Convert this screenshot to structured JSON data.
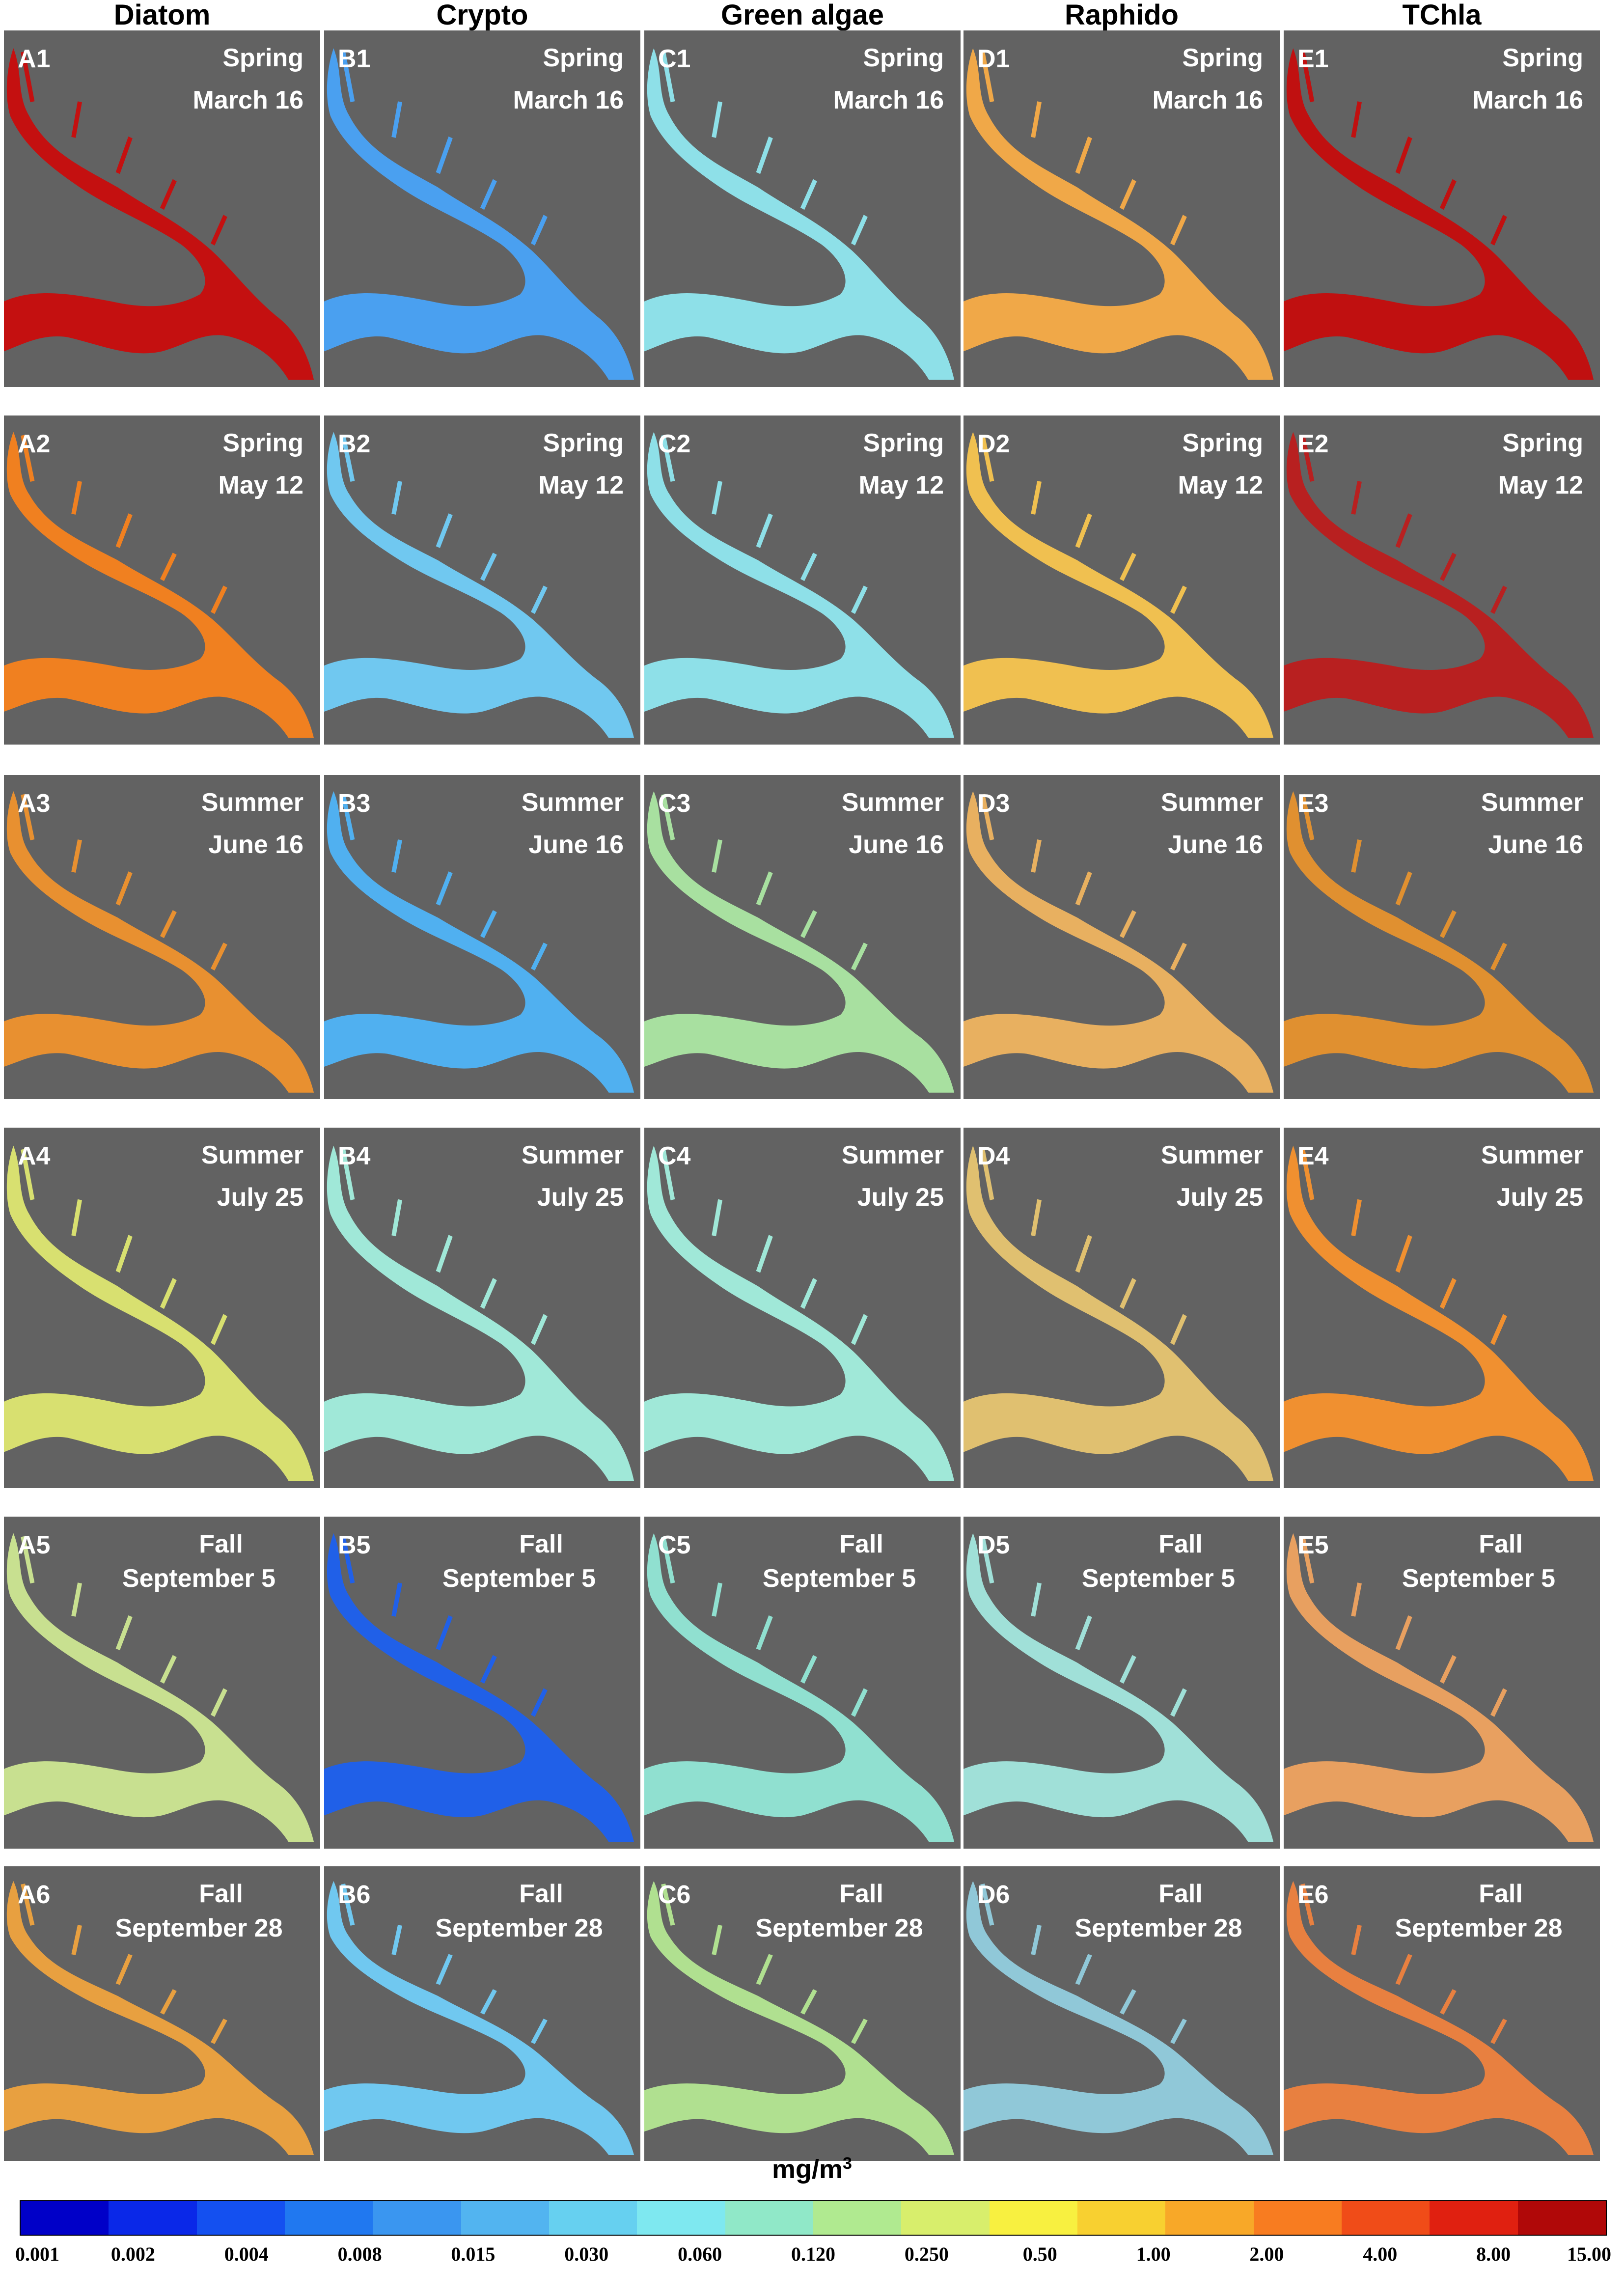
{
  "columns": [
    "Diatom",
    "Crypto",
    "Green algae",
    "Raphido",
    "TChla"
  ],
  "rows": [
    {
      "index": "1",
      "season": "Spring",
      "date": "March 16"
    },
    {
      "index": "2",
      "season": "Spring",
      "date": "May 12"
    },
    {
      "index": "3",
      "season": "Summer",
      "date": "June 16"
    },
    {
      "index": "4",
      "season": "Summer",
      "date": "July 25"
    },
    {
      "index": "5",
      "season": "Fall",
      "date": "September 5"
    },
    {
      "index": "6",
      "season": "Fall",
      "date": "September 28"
    }
  ],
  "panel_letters": [
    "A",
    "B",
    "C",
    "D",
    "E"
  ],
  "panel_fill": [
    [
      "#c41010",
      "#4aa0f0",
      "#8ee0e8",
      "#f0a848",
      "#c01010"
    ],
    [
      "#f08020",
      "#70c8f0",
      "#8ee0e8",
      "#f0c050",
      "#b82020"
    ],
    [
      "#e89030",
      "#50b0f0",
      "#a8e0a0",
      "#e8b060",
      "#e09030"
    ],
    [
      "#d8e070",
      "#a0e8d8",
      "#a0e8d8",
      "#e0c070",
      "#f09030"
    ],
    [
      "#c8e090",
      "#2060e8",
      "#90e0d0",
      "#a0e0d8",
      "#e8a060"
    ],
    [
      "#e8a040",
      "#70c8f0",
      "#b0e090",
      "#90c8d8",
      "#e88040"
    ]
  ],
  "colorbar": {
    "unit_base": "mg/m",
    "unit_exp": "3",
    "colors": [
      "#0000c8",
      "#0a28e8",
      "#1450f0",
      "#2078f0",
      "#3a96f0",
      "#52b4f0",
      "#66d0f0",
      "#7ee8f0",
      "#90e8c8",
      "#b0ea90",
      "#d8ee6c",
      "#f8f040",
      "#f8d030",
      "#f8a828",
      "#f87c20",
      "#f04c18",
      "#e02010",
      "#b00808"
    ],
    "labels": [
      "0.001",
      "0.002",
      "0.004",
      "0.008",
      "0.015",
      "0.030",
      "0.060",
      "0.120",
      "0.250",
      "0.50",
      "1.00",
      "2.00",
      "4.00",
      "8.00",
      "15.00"
    ]
  }
}
